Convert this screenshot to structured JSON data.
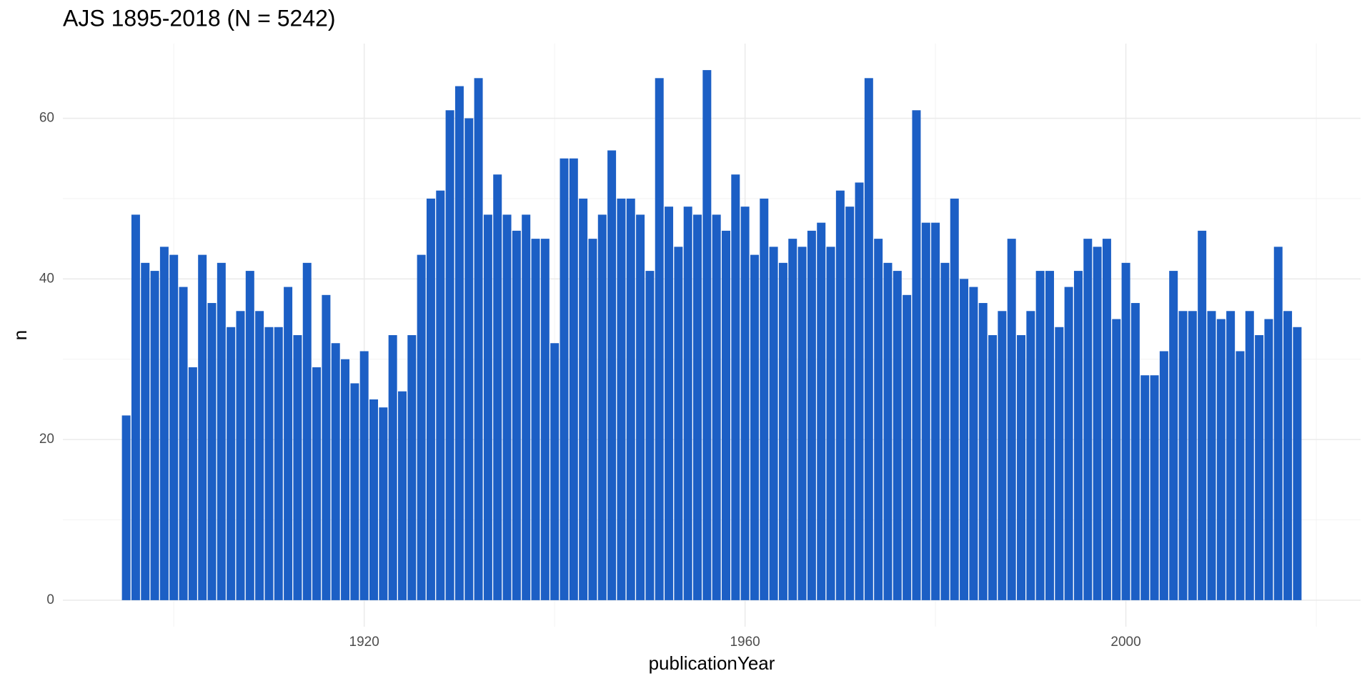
{
  "chart_data": {
    "type": "bar",
    "title": "AJS 1895-2018 (N = 5242)",
    "x_label": "publicationYear",
    "y_label": "n",
    "x": [
      1895,
      1896,
      1897,
      1898,
      1899,
      1900,
      1901,
      1902,
      1903,
      1904,
      1905,
      1906,
      1907,
      1908,
      1909,
      1910,
      1911,
      1912,
      1913,
      1914,
      1915,
      1916,
      1917,
      1918,
      1919,
      1920,
      1921,
      1922,
      1923,
      1924,
      1925,
      1926,
      1927,
      1928,
      1929,
      1930,
      1931,
      1932,
      1933,
      1934,
      1935,
      1936,
      1937,
      1938,
      1939,
      1940,
      1941,
      1942,
      1943,
      1944,
      1945,
      1946,
      1947,
      1948,
      1949,
      1950,
      1951,
      1952,
      1953,
      1954,
      1955,
      1956,
      1957,
      1958,
      1959,
      1960,
      1961,
      1962,
      1963,
      1964,
      1965,
      1966,
      1967,
      1968,
      1969,
      1970,
      1971,
      1972,
      1973,
      1974,
      1975,
      1976,
      1977,
      1978,
      1979,
      1980,
      1981,
      1982,
      1983,
      1984,
      1985,
      1986,
      1987,
      1988,
      1989,
      1990,
      1991,
      1992,
      1993,
      1994,
      1995,
      1996,
      1997,
      1998,
      1999,
      2000,
      2001,
      2002,
      2003,
      2004,
      2005,
      2006,
      2007,
      2008,
      2009,
      2010,
      2011,
      2012,
      2013,
      2014,
      2015,
      2016,
      2017,
      2018
    ],
    "values": [
      23,
      48,
      42,
      41,
      44,
      43,
      39,
      29,
      43,
      37,
      42,
      34,
      36,
      41,
      36,
      34,
      34,
      39,
      33,
      42,
      29,
      38,
      32,
      30,
      27,
      31,
      25,
      24,
      33,
      26,
      33,
      43,
      50,
      51,
      61,
      64,
      60,
      65,
      48,
      53,
      48,
      46,
      48,
      45,
      45,
      32,
      55,
      55,
      50,
      45,
      48,
      56,
      50,
      50,
      48,
      41,
      65,
      49,
      44,
      49,
      48,
      66,
      48,
      46,
      53,
      49,
      43,
      50,
      44,
      42,
      45,
      44,
      46,
      47,
      44,
      51,
      49,
      52,
      65,
      45,
      42,
      41,
      38,
      61,
      47,
      47,
      42,
      50,
      40,
      39,
      37,
      33,
      36,
      45,
      33,
      36,
      41,
      41,
      34,
      39,
      41,
      45,
      44,
      45,
      35,
      42,
      37,
      28,
      28,
      31,
      41,
      36,
      36,
      46,
      36,
      35,
      36,
      31,
      36,
      33,
      35,
      44,
      36,
      34
    ],
    "color": "#1c5fc5",
    "xlim": [
      1888.35,
      2024.65
    ],
    "xticks": [
      1920,
      1960,
      2000
    ],
    "ylim": [
      -3.3,
      69.3
    ],
    "yticks": [
      0,
      20,
      40,
      60
    ],
    "grid": true
  }
}
